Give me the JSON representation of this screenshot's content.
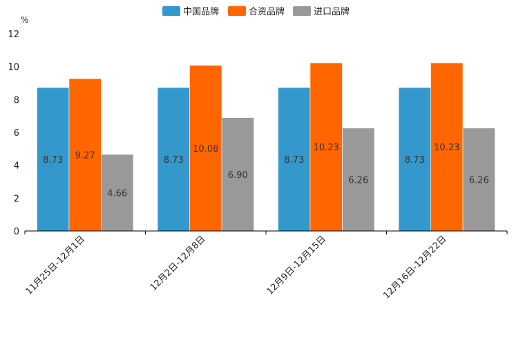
{
  "chart_data": {
    "type": "bar",
    "title": "",
    "xlabel": "",
    "ylabel": "%",
    "ylim": [
      0,
      12
    ],
    "yticks": [
      0,
      2,
      4,
      6,
      8,
      10,
      12
    ],
    "grid": false,
    "legend_position": "top-center",
    "categories": [
      "11月25日-12月1日",
      "12月2日-12月8日",
      "12月9日-12月15日",
      "12月16日-12月22日"
    ],
    "series": [
      {
        "name": "中国品牌",
        "color": "#3399CC",
        "values": [
          8.73,
          8.73,
          8.73,
          8.73
        ],
        "labels": [
          "8.73",
          "8.73",
          "8.73",
          "8.73"
        ]
      },
      {
        "name": "合资品牌",
        "color": "#FF6600",
        "values": [
          9.27,
          10.08,
          10.23,
          10.23
        ],
        "labels": [
          "9.27",
          "10.08",
          "10.23",
          "10.23"
        ]
      },
      {
        "name": "进口品牌",
        "color": "#999999",
        "values": [
          4.66,
          6.9,
          6.26,
          6.26
        ],
        "labels": [
          "4.66",
          "6.90",
          "6.26",
          "6.26"
        ]
      }
    ]
  }
}
